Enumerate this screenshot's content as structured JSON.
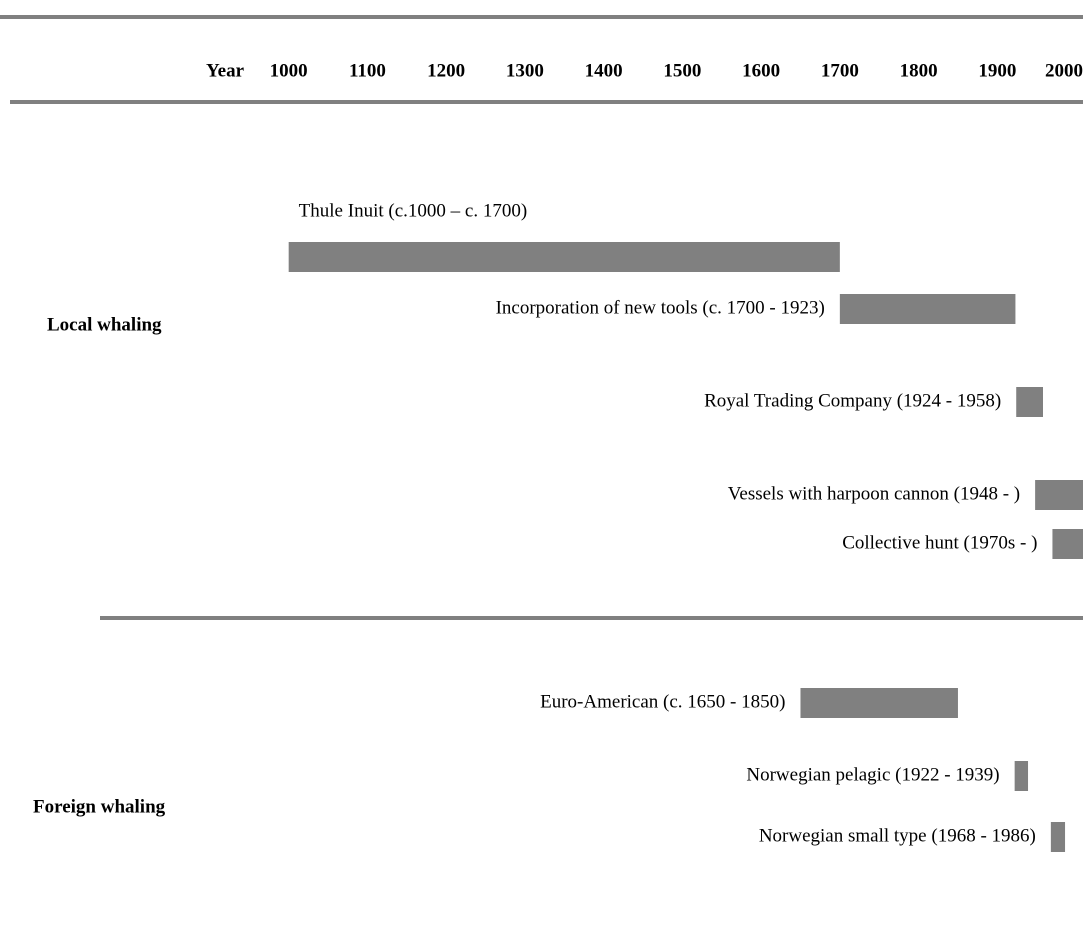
{
  "chart_data": {
    "type": "timeline",
    "x_label": "Year",
    "xlim": [
      975,
      2005
    ],
    "xticks": [
      1000,
      1100,
      1200,
      1300,
      1400,
      1500,
      1600,
      1700,
      1800,
      1900,
      2000
    ],
    "color": "#808080",
    "groups": [
      {
        "name": "Local whaling",
        "tasks": [
          {
            "label": "Thule Inuit (c.1000 – c. 1700)",
            "start": 1000,
            "end": 1700
          },
          {
            "label": "Incorporation of new tools (c. 1700 - 1923)",
            "start": 1700,
            "end": 1923
          },
          {
            "label": "Royal Trading Company (1924 - 1958)",
            "start": 1924,
            "end": 1958
          },
          {
            "label": "Vessels with harpoon cannon (1948 - )",
            "start": 1948,
            "end": null
          },
          {
            "label": "Collective hunt (1970s - )",
            "start": 1970,
            "end": null
          }
        ]
      },
      {
        "name": "Foreign whaling",
        "tasks": [
          {
            "label": "Euro-American (c. 1650 - 1850)",
            "start": 1650,
            "end": 1850
          },
          {
            "label": "Norwegian pelagic (1922 - 1939)",
            "start": 1922,
            "end": 1939
          },
          {
            "label": "Norwegian small type (1968 - 1986)",
            "start": 1968,
            "end": 1986
          }
        ]
      }
    ]
  }
}
